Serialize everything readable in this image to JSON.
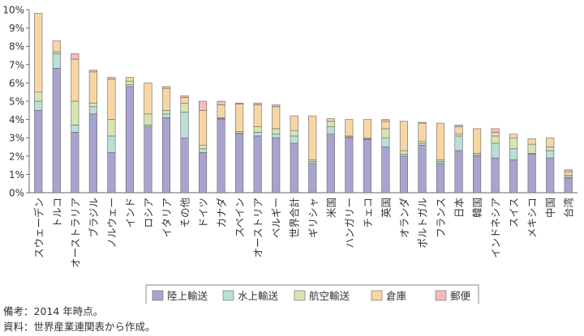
{
  "chart_data": {
    "type": "bar",
    "stacked": true,
    "title": "",
    "xlabel": "",
    "ylabel": "",
    "ylim": [
      0,
      10
    ],
    "y_ticks": [
      "0%",
      "1%",
      "2%",
      "3%",
      "4%",
      "5%",
      "6%",
      "7%",
      "8%",
      "9%",
      "10%"
    ],
    "grid": false,
    "legend_position": "bottom",
    "categories": [
      "スウェーデン",
      "トルコ",
      "オーストラリア",
      "ブラジル",
      "ノルウェー",
      "インド",
      "ロシア",
      "イタリア",
      "その他",
      "ドイツ",
      "カナダ",
      "スペイン",
      "オーストリア",
      "ベルギー",
      "世界合計",
      "ギリシャ",
      "米国",
      "ハンガリー",
      "チェコ",
      "英国",
      "オランダ",
      "ポルトガル",
      "フランス",
      "日本",
      "韓国",
      "インドネシア",
      "スイス",
      "メキシコ",
      "中国",
      "台湾"
    ],
    "series": [
      {
        "name": "陸上輸送",
        "color": "#a9a3cf",
        "values": [
          4.5,
          6.8,
          3.3,
          4.3,
          2.2,
          5.8,
          3.6,
          4.1,
          3.0,
          2.2,
          4.0,
          3.2,
          3.1,
          3.0,
          2.7,
          1.6,
          3.2,
          3.0,
          2.9,
          2.5,
          2.0,
          2.6,
          1.6,
          2.3,
          2.0,
          1.9,
          1.8,
          2.1,
          1.9,
          0.8
        ]
      },
      {
        "name": "水上輸送",
        "color": "#b9dfd7",
        "values": [
          0.5,
          0.8,
          0.4,
          0.4,
          0.9,
          0.1,
          0.1,
          0.2,
          1.4,
          0.2,
          0.05,
          0.05,
          0.2,
          0.2,
          0.4,
          0.1,
          0.4,
          0.05,
          0.05,
          0.5,
          0.1,
          0.1,
          0.1,
          0.8,
          0.05,
          0.8,
          0.6,
          0.05,
          0.4,
          0.05
        ]
      },
      {
        "name": "航空輸送",
        "color": "#d6e5b2",
        "values": [
          0.5,
          0.1,
          1.3,
          0.2,
          0.9,
          0.2,
          0.6,
          0.2,
          0.5,
          0.2,
          0.05,
          0.1,
          0.3,
          0.3,
          0.3,
          0.1,
          0.3,
          0.05,
          0.05,
          0.5,
          0.2,
          0.1,
          0.1,
          0.1,
          0.1,
          0.4,
          0.6,
          0.5,
          0.2,
          0.1
        ]
      },
      {
        "name": "倉庫",
        "color": "#f8d6a4",
        "values": [
          4.3,
          0.6,
          2.3,
          1.7,
          2.2,
          0.2,
          1.7,
          1.2,
          0.3,
          1.9,
          0.7,
          1.5,
          1.2,
          1.2,
          0.8,
          2.4,
          0.15,
          0.9,
          1.0,
          0.4,
          1.6,
          1.0,
          2.0,
          0.4,
          1.35,
          0.2,
          0.2,
          0.3,
          0.5,
          0.2
        ]
      },
      {
        "name": "郵便",
        "color": "#f3bcbc",
        "values": [
          0.0,
          0.0,
          0.3,
          0.1,
          0.1,
          0.0,
          0.0,
          0.1,
          0.1,
          0.5,
          0.2,
          0.05,
          0.1,
          0.1,
          0.0,
          0.0,
          0.0,
          0.0,
          0.0,
          0.1,
          0.0,
          0.05,
          0.0,
          0.1,
          0.0,
          0.2,
          0.0,
          0.0,
          0.0,
          0.1
        ]
      }
    ]
  },
  "notes": {
    "line1": "備考：2014 年時点。",
    "line2": "資料：世界産業連関表から作成。"
  }
}
